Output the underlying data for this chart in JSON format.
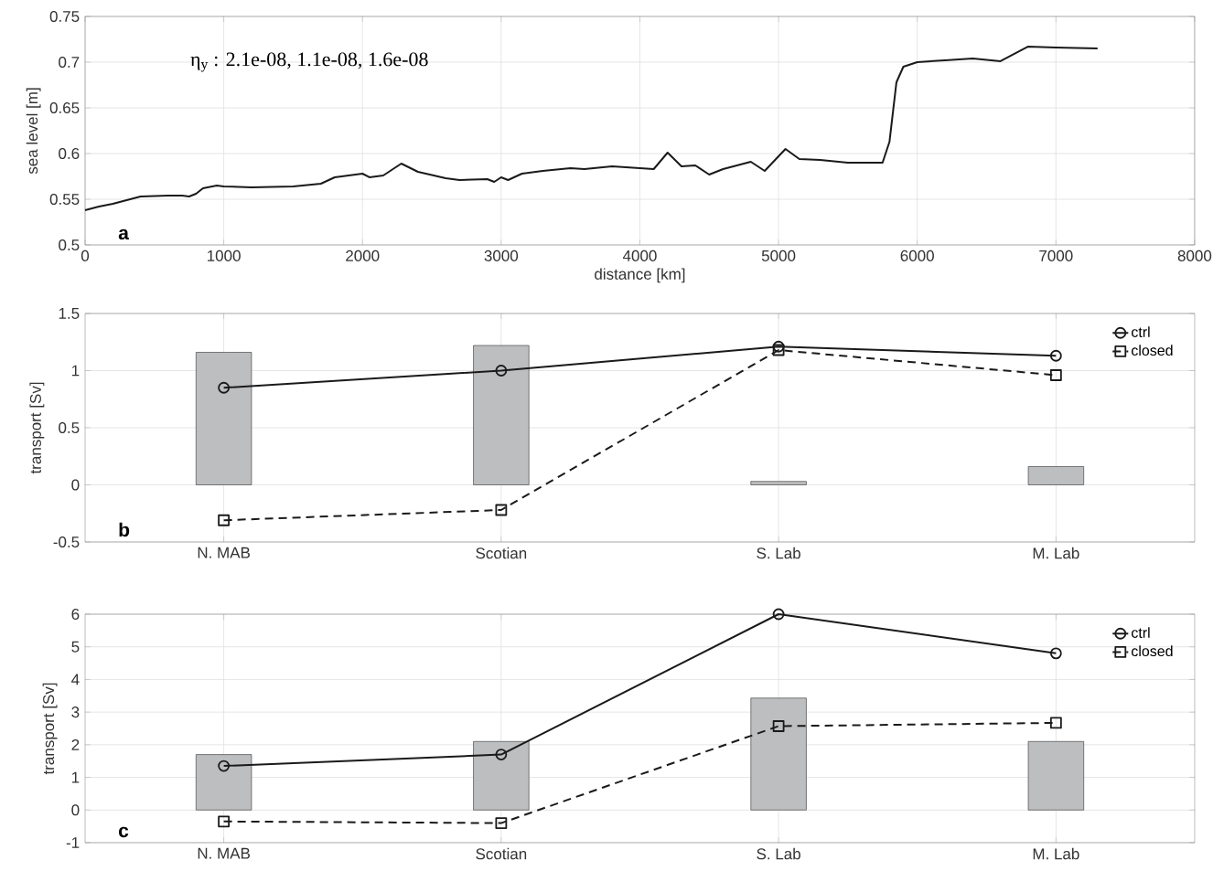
{
  "chart_data": [
    {
      "type": "line",
      "xlabel": "distance [km]",
      "ylabel": "sea level [m]",
      "xlim": [
        0,
        8000
      ],
      "xticks": [
        0,
        1000,
        2000,
        3000,
        4000,
        5000,
        6000,
        7000,
        8000
      ],
      "ylim": [
        0.5,
        0.75
      ],
      "yticks": [
        0.5,
        0.55,
        0.6,
        0.65,
        0.7,
        0.75
      ],
      "grid": true,
      "annotations": [
        "η$_{y}$ : 2.1e-08, 1.1e-08, 1.6e-08",
        "a"
      ],
      "series": [
        {
          "color": "#1a1a1a",
          "line_style": "solid",
          "x": [
            0,
            100,
            200,
            400,
            600,
            700,
            750,
            800,
            850,
            950,
            1000,
            1200,
            1500,
            1700,
            1800,
            2000,
            2050,
            2150,
            2280,
            2400,
            2600,
            2700,
            2900,
            2950,
            3000,
            3050,
            3150,
            3300,
            3500,
            3600,
            3800,
            4000,
            4100,
            4200,
            4300,
            4400,
            4500,
            4600,
            4800,
            4900,
            5050,
            5150,
            5300,
            5500,
            5750,
            5800,
            5850,
            5900,
            6000,
            6200,
            6400,
            6600,
            6800,
            7000,
            7300
          ],
          "values": [
            0.538,
            0.542,
            0.545,
            0.553,
            0.554,
            0.554,
            0.553,
            0.556,
            0.562,
            0.565,
            0.564,
            0.563,
            0.564,
            0.567,
            0.574,
            0.578,
            0.574,
            0.576,
            0.589,
            0.58,
            0.573,
            0.571,
            0.572,
            0.569,
            0.574,
            0.571,
            0.578,
            0.581,
            0.584,
            0.583,
            0.586,
            0.584,
            0.583,
            0.601,
            0.586,
            0.587,
            0.577,
            0.583,
            0.591,
            0.581,
            0.605,
            0.594,
            0.593,
            0.59,
            0.59,
            0.613,
            0.678,
            0.695,
            0.7,
            0.702,
            0.704,
            0.701,
            0.717,
            0.716,
            0.715
          ]
        }
      ]
    },
    {
      "type": "bar",
      "ylabel": "transport [Sv]",
      "categories": [
        "N. MAB",
        "Scotian",
        "S. Lab",
        "M. Lab"
      ],
      "ylim": [
        -0.5,
        1.5
      ],
      "yticks": [
        -0.5,
        0,
        0.5,
        1,
        1.5
      ],
      "grid": true,
      "legend": "top right",
      "annotations": [
        "b"
      ],
      "series": [
        {
          "color": "#bdbec0",
          "values": [
            1.16,
            1.22,
            0.03,
            0.16
          ]
        },
        {
          "name": "ctrl",
          "type": "line",
          "color": "#1a1a1a",
          "marker": "circle",
          "line_style": "solid",
          "values": [
            0.85,
            1.0,
            1.21,
            1.13
          ]
        },
        {
          "name": "closed",
          "type": "line",
          "color": "#1a1a1a",
          "marker": "square",
          "line_style": "dashed",
          "values": [
            -0.31,
            -0.22,
            1.18,
            0.96
          ]
        }
      ]
    },
    {
      "type": "bar",
      "ylabel": "transport [Sv]",
      "categories": [
        "N. MAB",
        "Scotian",
        "S. Lab",
        "M. Lab"
      ],
      "ylim": [
        -1,
        6
      ],
      "yticks": [
        -1,
        0,
        1,
        2,
        3,
        4,
        5,
        6
      ],
      "grid": true,
      "legend": "top right",
      "annotations": [
        "c"
      ],
      "series": [
        {
          "color": "#bdbec0",
          "values": [
            1.7,
            2.1,
            3.43,
            2.1
          ]
        },
        {
          "name": "ctrl",
          "type": "line",
          "color": "#1a1a1a",
          "marker": "circle",
          "line_style": "solid",
          "values": [
            1.35,
            1.7,
            6.0,
            4.8
          ]
        },
        {
          "name": "closed",
          "type": "line",
          "color": "#1a1a1a",
          "marker": "square",
          "line_style": "dashed",
          "values": [
            -0.35,
            -0.4,
            2.57,
            2.67
          ]
        }
      ]
    }
  ]
}
